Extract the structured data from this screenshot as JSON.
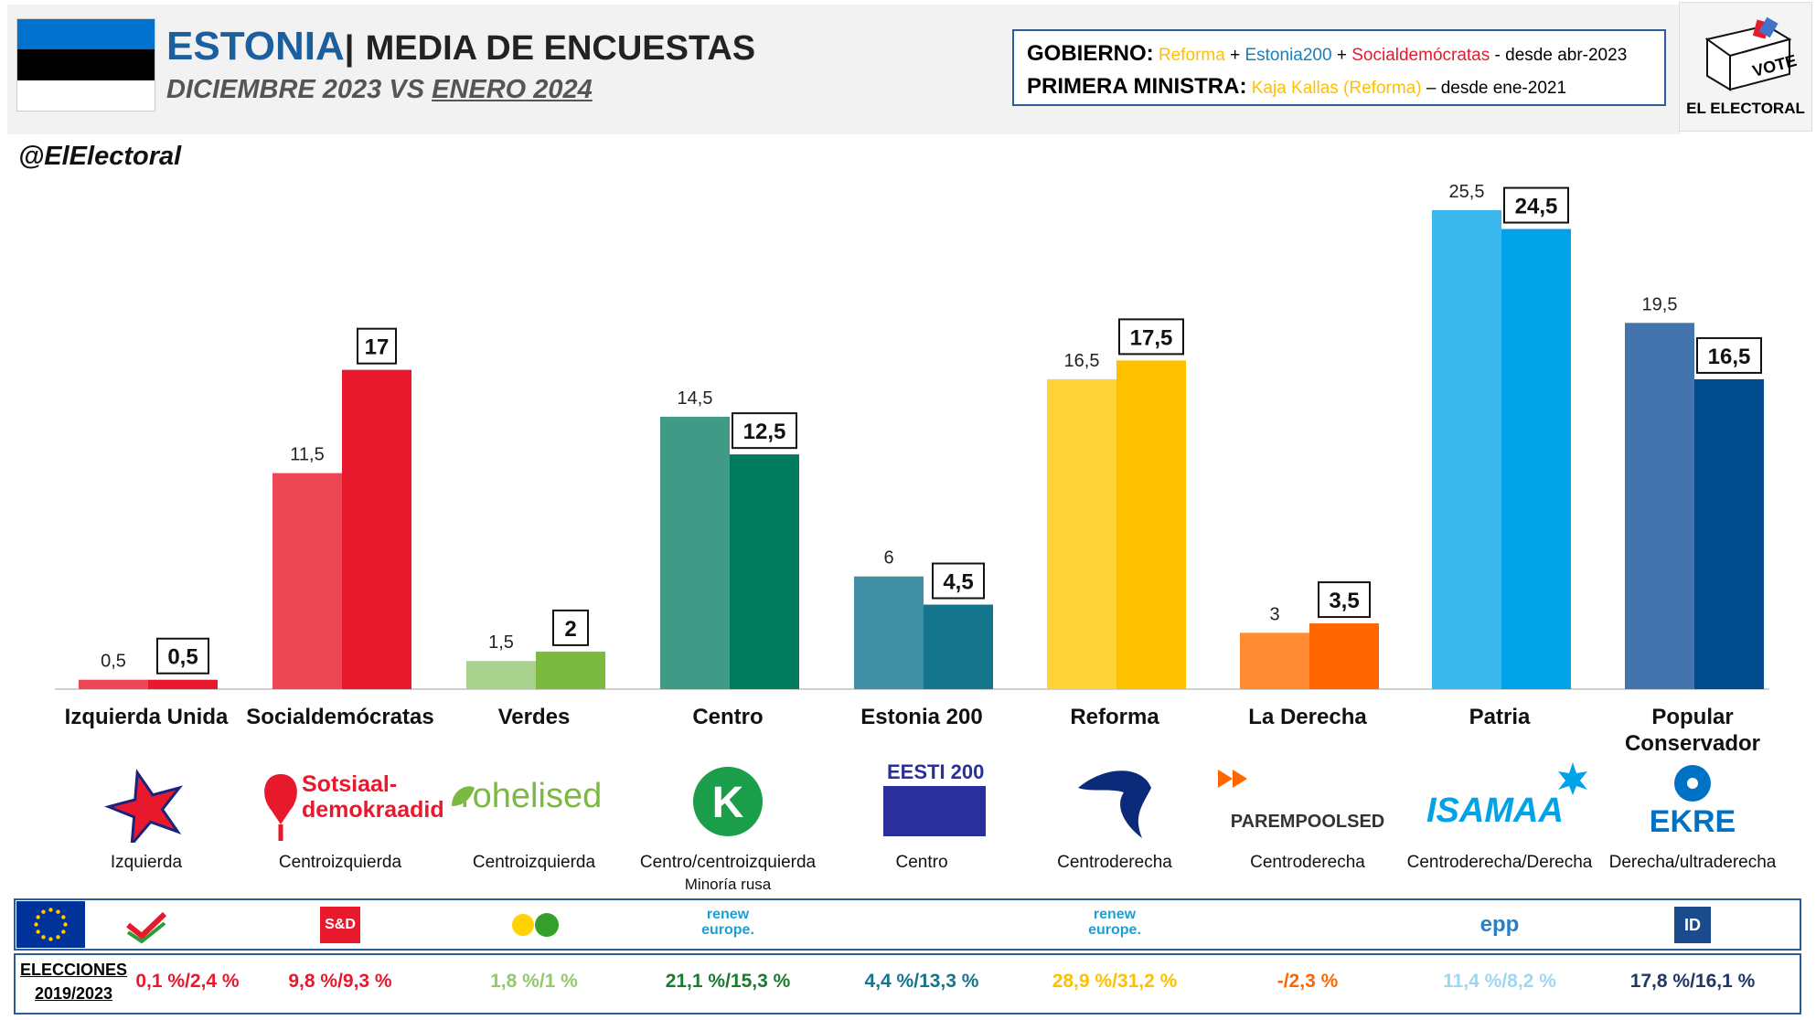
{
  "header": {
    "flag_colors": [
      "#0072ce",
      "#000000",
      "#ffffff"
    ],
    "country": "ESTONIA",
    "separator": "|",
    "title_rest": "MEDIA DE ENCUESTAS",
    "subtitle_prefix": "DICIEMBRE 2023 VS",
    "subtitle_current": "ENERO 2024",
    "gov_label": "GOBIERNO:",
    "gov_parties": [
      {
        "name": "Reforma",
        "color": "#ffc000"
      },
      {
        "name": "Estonia200",
        "color": "#1b7fb8"
      },
      {
        "name": "Socialdemócratas",
        "color": "#e8192c"
      }
    ],
    "gov_plus": "+",
    "gov_since": "- desde abr-2023",
    "pm_label": "PRIMERA MINISTRA:",
    "pm_name": "Kaja Kallas (Reforma)",
    "pm_name_color": "#ffc000",
    "pm_since": "– desde ene-2021",
    "brand": "EL ELECTORAL",
    "vote_text": "VOTE",
    "handle": "@ElElectoral"
  },
  "chart_data": {
    "type": "bar",
    "categories": [
      "Izquierda Unida",
      "Socialdemócratas",
      "Verdes",
      "Centro",
      "Estonia 200",
      "Reforma",
      "La Derecha",
      "Patria",
      "Popular Conservador"
    ],
    "series": [
      {
        "values": [
          0.5,
          11.5,
          1.5,
          14.5,
          6,
          16.5,
          3,
          25.5,
          19.5
        ],
        "labels": [
          "0,5",
          "11,5",
          "1,5",
          "14,5",
          "6",
          "16,5",
          "3",
          "25,5",
          "19,5"
        ],
        "colors": [
          "#ed4654",
          "#ed4654",
          "#a9d18e",
          "#3f9b86",
          "#3f90a5",
          "#ffd236",
          "#ff8c33",
          "#3bb9ef",
          "#4374ad"
        ]
      },
      {
        "values": [
          0.5,
          17,
          2,
          12.5,
          4.5,
          17.5,
          3.5,
          24.5,
          16.5
        ],
        "labels": [
          "0,5",
          "17",
          "2",
          "12,5",
          "4,5",
          "17,5",
          "3,5",
          "24,5",
          "16,5"
        ],
        "colors": [
          "#e8192c",
          "#e8192c",
          "#7cb940",
          "#007b5e",
          "#14758c",
          "#ffc000",
          "#ff6600",
          "#00a2e8",
          "#004b8c"
        ]
      }
    ],
    "ylim": [
      0,
      28
    ]
  },
  "parties": [
    {
      "line1": "Izquierda Unida",
      "line2": "",
      "ideology": "Izquierda",
      "ideology2": "",
      "logo_text": "",
      "logo_color": "#e8192c",
      "icon": "star-icon"
    },
    {
      "line1": "Socialdemócratas",
      "line2": "",
      "ideology": "Centroizquierda",
      "ideology2": "",
      "logo_text": "Sotsiaal-demokraadid",
      "logo_color": "#e8192c",
      "icon": "rose-icon"
    },
    {
      "line1": "Verdes",
      "line2": "",
      "ideology": "Centroizquierda",
      "ideology2": "",
      "logo_text": "rohelised",
      "logo_color": "#7cb940",
      "icon": "leaf-icon"
    },
    {
      "line1": "Centro",
      "line2": "",
      "ideology": "Centro/centroizquierda",
      "ideology2": "Minoría rusa",
      "logo_text": "",
      "logo_color": "#1a9e4a",
      "icon": "clover-k-icon"
    },
    {
      "line1": "Estonia 200",
      "line2": "",
      "ideology": "Centro",
      "ideology2": "",
      "logo_text": "EESTI 200",
      "logo_color": "#2a2f9c",
      "icon": "e200-icon"
    },
    {
      "line1": "Reforma",
      "line2": "",
      "ideology": "Centroderecha",
      "ideology2": "",
      "logo_text": "",
      "logo_color": "#0b2a7a",
      "icon": "squirrel-icon"
    },
    {
      "line1": "La Derecha",
      "line2": "",
      "ideology": "Centroderecha",
      "ideology2": "",
      "logo_text": "PAREMPOOLSED",
      "logo_color": "#333333",
      "icon": "arrows-icon"
    },
    {
      "line1": "Patria",
      "line2": "",
      "ideology": "Centroderecha/Derecha",
      "ideology2": "",
      "logo_text": "ISAMAA",
      "logo_color": "#00a2e8",
      "icon": "star-burst-icon"
    },
    {
      "line1": "Popular",
      "line2": "Conservador",
      "ideology": "Derecha/ultraderecha",
      "ideology2": "",
      "logo_text": "EKRE",
      "logo_color": "#0072c6",
      "icon": "cornflower-icon"
    }
  ],
  "eu_groups": [
    {
      "icon": "left-group-icon",
      "text": "",
      "color": "#e8192c"
    },
    {
      "icon": "sd-group-icon",
      "text": "S&D",
      "color": "#e8192c"
    },
    {
      "icon": "greens-group-icon",
      "text": "",
      "color": "#33a02c"
    },
    {
      "icon": "renew-group-icon",
      "text": "renew europe.",
      "color": "#1d9fd6"
    },
    {
      "icon": "none",
      "text": "",
      "color": "#ffffff"
    },
    {
      "icon": "renew-group-icon",
      "text": "renew europe.",
      "color": "#1d9fd6"
    },
    {
      "icon": "none",
      "text": "",
      "color": "#ffffff"
    },
    {
      "icon": "epp-group-icon",
      "text": "epp",
      "color": "#2a7fc4"
    },
    {
      "icon": "id-group-icon",
      "text": "ID",
      "color": "#1a4b8c"
    }
  ],
  "elections": {
    "label_line1": "ELECCIONES",
    "label_line2": "2019/2023",
    "results": [
      {
        "text": "0,1 %/2,4 %",
        "color": "#e8192c"
      },
      {
        "text": "9,8 %/9,3 %",
        "color": "#e8192c"
      },
      {
        "text": "1,8 %/1 %",
        "color": "#92c96a"
      },
      {
        "text": "21,1 %/15,3 %",
        "color": "#1a7a2e"
      },
      {
        "text": "4,4 %/13,3 %",
        "color": "#14758c"
      },
      {
        "text": "28,9 %/31,2 %",
        "color": "#ffc000"
      },
      {
        "text": "-/2,3 %",
        "color": "#ff6600"
      },
      {
        "text": "11,4 %/8,2 %",
        "color": "#9fd6f2"
      },
      {
        "text": "17,8 %/16,1 %",
        "color": "#1f3864"
      }
    ]
  }
}
